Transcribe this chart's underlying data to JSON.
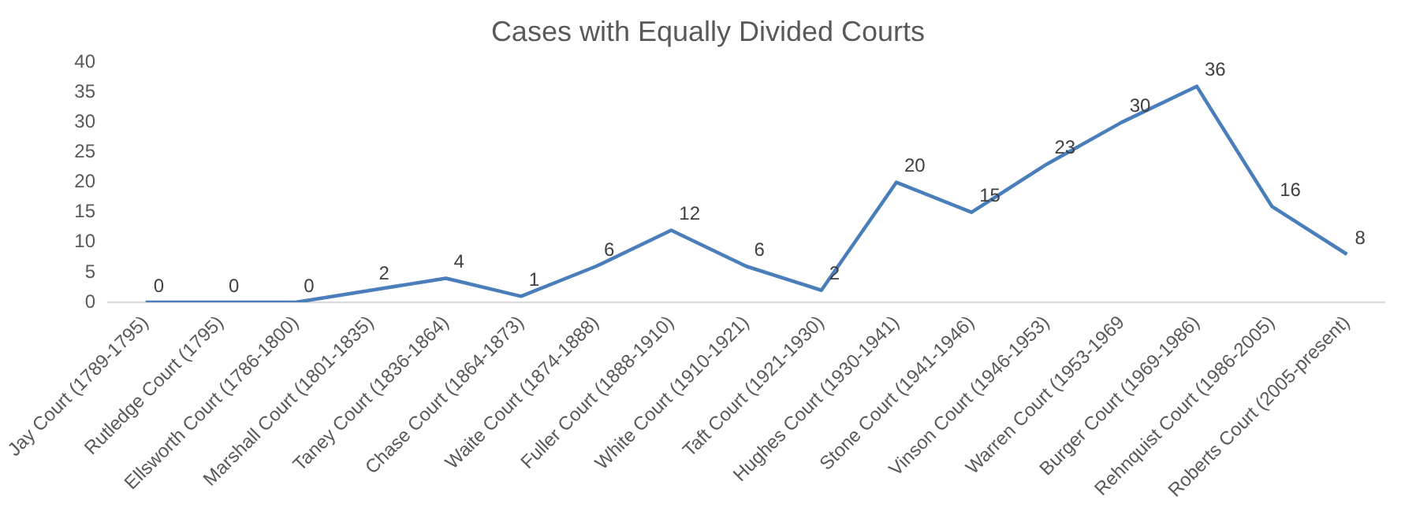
{
  "chart_data": {
    "type": "line",
    "title": "Cases with Equally Divided Courts",
    "categories": [
      "Jay Court (1789-1795)",
      "Rutledge Court (1795)",
      "Ellsworth Court (1786-1800)",
      "Marshall Court (1801-1835)",
      "Taney Court (1836-1864)",
      "Chase Court (1864-1873)",
      "Waite Court (1874-1888)",
      "Fuller Court (1888-1910)",
      "White Court (1910-1921)",
      "Taft Court (1921-1930)",
      "Hughes Court (1930-1941)",
      "Stone Court (1941-1946)",
      "Vinson Court (1946-1953)",
      "Warren Court (1953-1969",
      "Burger Court (1969-1986)",
      "Rehnquist Court (1986-2005)",
      "Roberts Court (2005-present)"
    ],
    "series": [
      {
        "color": "#4a7ebb",
        "values": [
          0,
          0,
          0,
          2,
          4,
          1,
          6,
          12,
          6,
          2,
          20,
          15,
          23,
          30,
          36,
          16,
          8
        ]
      }
    ],
    "ylim": [
      0,
      40
    ],
    "yticks": [
      0,
      5,
      10,
      15,
      20,
      25,
      30,
      35,
      40
    ],
    "grid": false,
    "legend": false,
    "marker": "none",
    "line_style": "solid",
    "data_labels": true
  }
}
